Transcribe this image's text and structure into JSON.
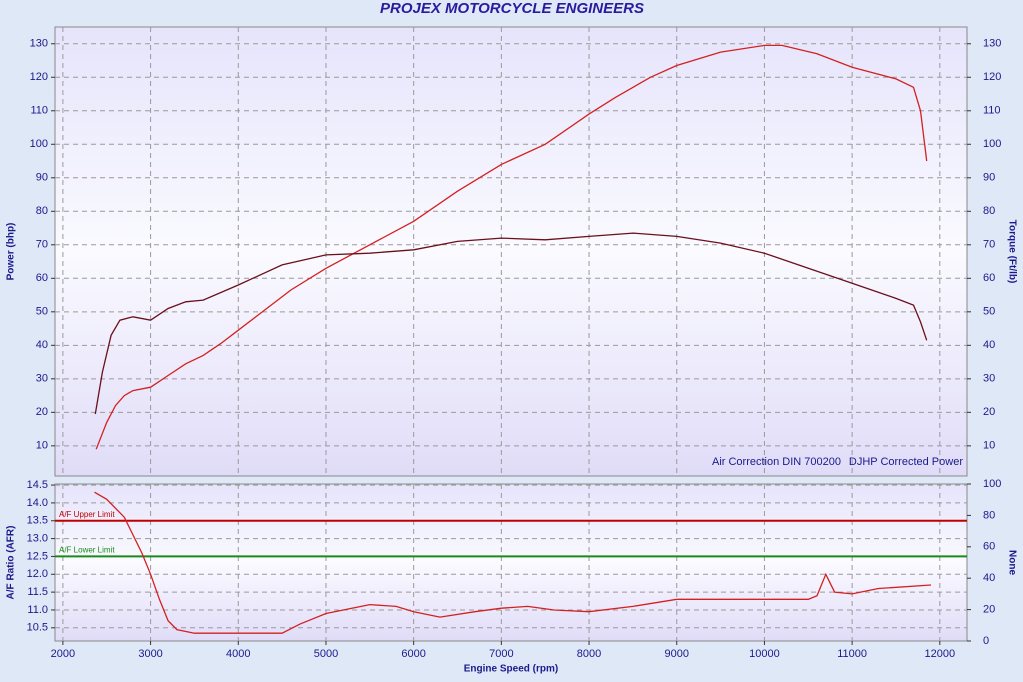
{
  "chart_data": [
    {
      "type": "line",
      "title": "PROJEX MOTORCYCLE ENGINEERS",
      "y_label": "Power (bhp)",
      "y2_label": "Torque (Ft/lb)",
      "annotations": [
        "Air Correction DIN 700200",
        "DJHP Corrected Power"
      ],
      "xlim": [
        1910,
        12310
      ],
      "xticks": [
        2000,
        3000,
        4000,
        5000,
        6000,
        7000,
        8000,
        9000,
        10000,
        11000,
        12000
      ],
      "ylim": [
        1,
        135
      ],
      "yticks": [
        10,
        20,
        30,
        40,
        50,
        60,
        70,
        80,
        90,
        100,
        110,
        120,
        130
      ],
      "y2lim": [
        1,
        135
      ],
      "y2ticks": [
        10,
        20,
        30,
        40,
        50,
        60,
        70,
        80,
        90,
        100,
        110,
        120,
        130
      ],
      "grid": true,
      "series": [
        {
          "name": "Power",
          "color": "#d42020",
          "axis": "y",
          "x": [
            2380,
            2500,
            2600,
            2700,
            2800,
            3000,
            3200,
            3400,
            3600,
            3800,
            4000,
            4300,
            4600,
            5000,
            5500,
            6000,
            6500,
            7000,
            7500,
            8000,
            8300,
            8700,
            9000,
            9500,
            10000,
            10200,
            10600,
            11000,
            11500,
            11700,
            11780,
            11850
          ],
          "values": [
            9,
            17,
            22,
            25,
            26.5,
            27.5,
            31,
            34.5,
            37,
            40.5,
            44.5,
            50.5,
            56.5,
            63,
            70,
            77,
            86,
            94,
            100,
            109,
            114,
            120,
            123.5,
            127.5,
            129.5,
            129.5,
            127,
            123,
            119.5,
            117,
            110,
            95
          ]
        },
        {
          "name": "Torque",
          "color": "#6b0f1a",
          "axis": "y2",
          "x": [
            2370,
            2450,
            2550,
            2650,
            2800,
            3000,
            3200,
            3400,
            3600,
            4000,
            4500,
            5000,
            5500,
            6000,
            6500,
            7000,
            7500,
            8000,
            8500,
            9000,
            9500,
            10000,
            10500,
            11000,
            11500,
            11700,
            11780,
            11850
          ],
          "values": [
            19.5,
            32,
            43,
            47.5,
            48.5,
            47.5,
            51,
            53,
            53.5,
            58,
            64,
            67,
            67.5,
            68.5,
            71,
            72,
            71.5,
            72.5,
            73.5,
            72.5,
            70.5,
            67.5,
            63,
            58.5,
            54,
            52,
            47,
            41.5
          ]
        }
      ]
    },
    {
      "type": "line",
      "x_label": "Engine Speed (rpm)",
      "y_label": "A/F Ratio (AFR)",
      "y2_label": "None",
      "xlim": [
        1910,
        12310
      ],
      "xticks": [
        2000,
        3000,
        4000,
        5000,
        6000,
        7000,
        8000,
        9000,
        10000,
        11000,
        12000
      ],
      "ylim": [
        10.13,
        14.53
      ],
      "yticks": [
        10.5,
        {
          "value": 11,
          "label": "11.0"
        },
        11.5,
        {
          "value": 12,
          "label": "12.0"
        },
        12.5,
        {
          "value": 13,
          "label": "13.0"
        },
        13.5,
        {
          "value": 14,
          "label": "14.0"
        },
        14.5
      ],
      "y2lim": [
        0,
        100
      ],
      "y2ticks": [
        0,
        20,
        40,
        60,
        80,
        100
      ],
      "grid": true,
      "hlines": [
        {
          "label": "A/F Upper Limit",
          "value": 13.5,
          "color": "#c00000"
        },
        {
          "label": "A/F Lower Limit",
          "value": 12.5,
          "color": "#1a8a1a"
        }
      ],
      "series": [
        {
          "name": "AFR",
          "color": "#d42020",
          "axis": "y",
          "x": [
            2360,
            2500,
            2700,
            2900,
            3000,
            3100,
            3200,
            3300,
            3500,
            4000,
            4500,
            4700,
            5000,
            5500,
            5800,
            6000,
            6300,
            6700,
            7000,
            7300,
            7600,
            8000,
            8500,
            9000,
            9500,
            10000,
            10500,
            10600,
            10700,
            10800,
            11000,
            11300,
            11900
          ],
          "values": [
            14.3,
            14.1,
            13.6,
            12.6,
            12.0,
            11.3,
            10.7,
            10.45,
            10.35,
            10.35,
            10.35,
            10.6,
            10.9,
            11.15,
            11.1,
            10.95,
            10.8,
            10.95,
            11.05,
            11.1,
            11.0,
            10.95,
            11.1,
            11.3,
            11.3,
            11.3,
            11.3,
            11.4,
            12.0,
            11.5,
            11.45,
            11.6,
            11.7
          ]
        }
      ]
    }
  ]
}
